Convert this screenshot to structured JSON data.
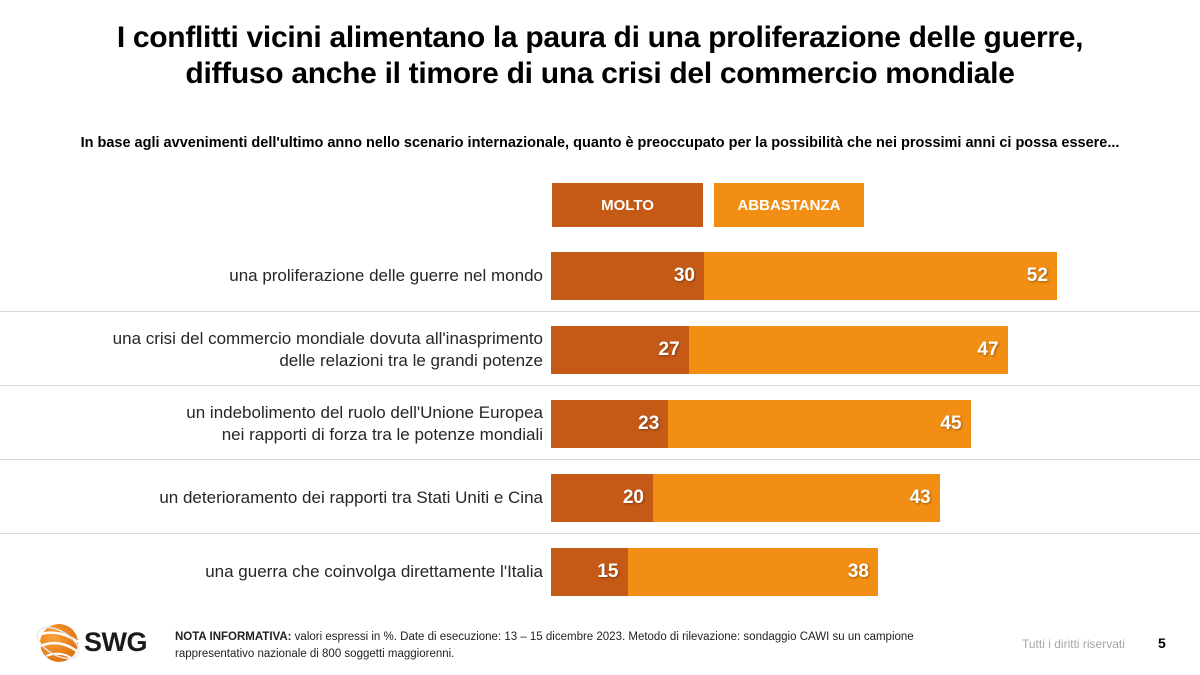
{
  "title_line1": "I conflitti vicini alimentano la paura di una proliferazione delle guerre,",
  "title_line2": "diffuso anche il timore di una crisi del commercio mondiale",
  "subtitle": "In base agli avvenimenti dell'ultimo anno nello scenario internazionale, quanto è preoccupato per la possibilità che nei prossimi anni ci possa essere...",
  "colors": {
    "molto": "#c55a17",
    "abbastanza": "#f28e13"
  },
  "chart_data": {
    "type": "bar",
    "orientation": "horizontal-stacked",
    "title": "In base agli avvenimenti dell'ultimo anno nello scenario internazionale, quanto è preoccupato per la possibilità che nei prossimi anni ci possa essere...",
    "unit": "%",
    "legend_placement": "top",
    "categories": [
      {
        "line1": "una proliferazione delle guerre nel mondo",
        "line2": ""
      },
      {
        "line1": "una crisi del commercio mondiale dovuta all'inasprimento",
        "line2": "delle relazioni tra le grandi potenze"
      },
      {
        "line1": "un indebolimento del ruolo dell'Unione Europea",
        "line2": "nei rapporti di forza tra le potenze mondiali"
      },
      {
        "line1": "un deterioramento dei rapporti tra Stati Uniti e Cina",
        "line2": ""
      },
      {
        "line1": "una guerra che coinvolga direttamente l'Italia",
        "line2": ""
      }
    ],
    "series": [
      {
        "name": "MOLTO",
        "values": [
          30,
          27,
          23,
          20,
          15
        ]
      },
      {
        "name": "ABBASTANZA",
        "values": [
          52,
          47,
          45,
          43,
          38
        ]
      }
    ]
  },
  "footer": {
    "note_label": "NOTA INFORMATIVA:",
    "note_text": " valori espressi in %. Date di esecuzione: 13 – 15 dicembre 2023. Metodo di rilevazione: sondaggio CAWI su un campione rappresentativo nazionale di 800 soggetti maggiorenni.",
    "rights": "Tutti i diritti riservati",
    "page": "5",
    "logo": "SWG"
  }
}
